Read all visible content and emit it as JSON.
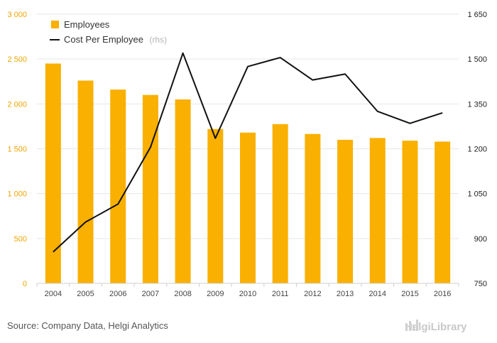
{
  "chart_data": {
    "type": "bar",
    "categories": [
      "2004",
      "2005",
      "2006",
      "2007",
      "2008",
      "2009",
      "2010",
      "2011",
      "2012",
      "2013",
      "2014",
      "2015",
      "2016"
    ],
    "series": [
      {
        "name": "Employees",
        "kind": "bar",
        "axis": "left",
        "color": "#f9b000",
        "values": [
          2450,
          2260,
          2160,
          2100,
          2050,
          1720,
          1680,
          1775,
          1665,
          1600,
          1620,
          1590,
          1580
        ]
      },
      {
        "name": "Cost Per Employee",
        "name_suffix": "(rhs)",
        "kind": "line",
        "axis": "right",
        "color": "#111111",
        "values": [
          855,
          955,
          1015,
          1205,
          1520,
          1235,
          1475,
          1505,
          1430,
          1450,
          1325,
          1285,
          1320
        ]
      }
    ],
    "yaxis_left": {
      "min": 0,
      "max": 3000,
      "ticks": [
        0,
        500,
        1000,
        1500,
        2000,
        2500,
        3000
      ],
      "tick_labels": [
        "0",
        "500",
        "1 000",
        "1 500",
        "2 000",
        "2 500",
        "3 000"
      ]
    },
    "yaxis_right": {
      "min": 750,
      "max": 1650,
      "ticks": [
        750,
        900,
        1050,
        1200,
        1350,
        1500,
        1650
      ],
      "tick_labels": [
        "750",
        "900",
        "1 050",
        "1 200",
        "1 350",
        "1 500",
        "1 650"
      ]
    },
    "grid": true,
    "legend_position": "top-left"
  },
  "footer": {
    "source": "Source: Company Data, Helgi Analytics",
    "brand": "HelgiLibrary"
  }
}
